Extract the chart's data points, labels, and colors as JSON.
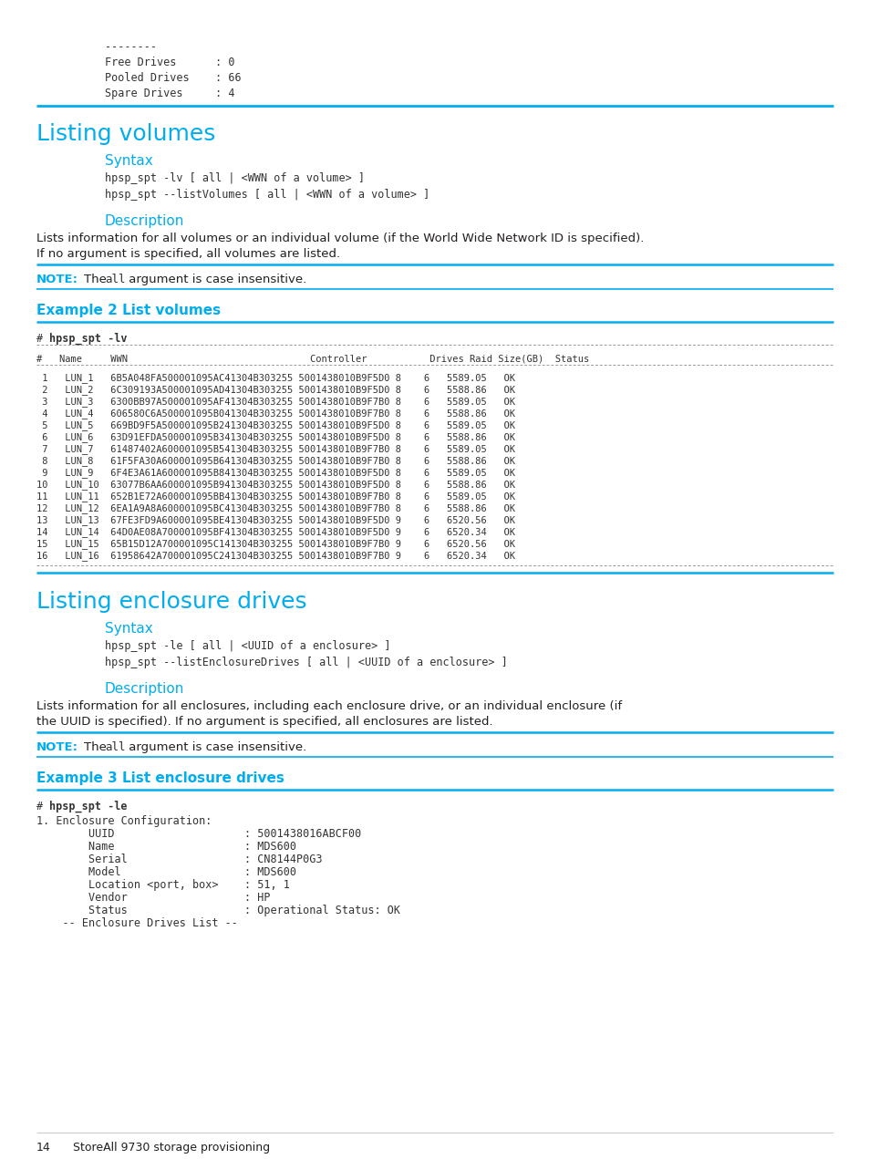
{
  "bg_color": "#ffffff",
  "cyan": "#00ADEF",
  "text_color": "#231f20",
  "mono_color": "#333333",
  "top_code_lines": [
    "--------",
    "Free Drives      : 0",
    "Pooled Drives    : 66",
    "Spare Drives     : 4"
  ],
  "section1_title": "Listing volumes",
  "syntax1_title": "Syntax",
  "syntax1_lines": [
    "hpsp_spt -lv [ all | <WWN of a volume> ]",
    "hpsp_spt --listVolumes [ all | <WWN of a volume> ]"
  ],
  "desc1_title": "Description",
  "desc1_text1": "Lists information for all volumes or an individual volume (if the World Wide Network ID is specified).",
  "desc1_text2": "If no argument is specified, all volumes are listed.",
  "note1_label": "NOTE:",
  "note1_pre": "The ",
  "note1_mono": "all",
  "note1_post": " argument is case insensitive.",
  "example1_title": "Example 2 List volumes",
  "example1_cmd_prefix": "# ",
  "example1_cmd_bold": "hpsp_spt -lv",
  "table1_header": "#   Name      WWN                               Controller           Drives Raid Size(GB)  Status",
  "table1_rows": [
    " 1   LUN_1   6B5A048FA500001095AC41304B303255 5001438010B9F5D0 8    6   5589.05   OK",
    " 2   LUN_2   6C309193A500001095AD41304B303255 5001438010B9F5D0 8    6   5588.86   OK",
    " 3   LUN_3   6300BB97A500001095AF41304B303255 5001438010B9F7B0 8    6   5589.05   OK",
    " 4   LUN_4   606580C6A500001095B041304B303255 5001438010B9F7B0 8    6   5588.86   OK",
    " 5   LUN_5   669BD9F5A500001095B241304B303255 5001438010B9F5D0 8    6   5589.05   OK",
    " 6   LUN_6   63D91EFDA500001095B341304B303255 5001438010B9F5D0 8    6   5588.86   OK",
    " 7   LUN_7   61487402A600001095B541304B303255 5001438010B9F7B0 8    6   5589.05   OK",
    " 8   LUN_8   61F5FA30A600001095B641304B303255 5001438010B9F7B0 8    6   5588.86   OK",
    " 9   LUN_9   6F4E3A61A600001095B841304B303255 5001438010B9F5D0 8    6   5589.05   OK",
    "10   LUN_10  63077B6AA600001095B941304B303255 5001438010B9F5D0 8    6   5588.86   OK",
    "11   LUN_11  652B1E72A600001095BB41304B303255 5001438010B9F7B0 8    6   5589.05   OK",
    "12   LUN_12  6EA1A9A8A600001095BC41304B303255 5001438010B9F7B0 8    6   5588.86   OK",
    "13   LUN_13  67FE3FD9A600001095BE41304B303255 5001438010B9F5D0 9    6   6520.56   OK",
    "14   LUN_14  64D0AE08A700001095BF41304B303255 5001438010B9F5D0 9    6   6520.34   OK",
    "15   LUN_15  65B15D12A700001095C141304B303255 5001438010B9F7B0 9    6   6520.56   OK",
    "16   LUN_16  61958642A700001095C241304B303255 5001438010B9F7B0 9    6   6520.34   OK"
  ],
  "section2_title": "Listing enclosure drives",
  "syntax2_title": "Syntax",
  "syntax2_lines": [
    "hpsp_spt -le [ all | <UUID of a enclosure> ]",
    "hpsp_spt --listEnclosureDrives [ all | <UUID of a enclosure> ]"
  ],
  "desc2_title": "Description",
  "desc2_text1": "Lists information for all enclosures, including each enclosure drive, or an individual enclosure (if",
  "desc2_text2": "the UUID is specified). If no argument is specified, all enclosures are listed.",
  "note2_label": "NOTE:",
  "note2_pre": "The ",
  "note2_mono": "all",
  "note2_post": " argument is case insensitive.",
  "example2_title": "Example 3 List enclosure drives",
  "example2_cmd_prefix": "# ",
  "example2_cmd_bold": "hpsp_spt -le",
  "example2_body": [
    "1. Enclosure Configuration:",
    "        UUID                    : 5001438016ABCF00",
    "        Name                    : MDS600",
    "        Serial                  : CN8144P0G3",
    "        Model                   : MDS600",
    "        Location <port, box>    : 51, 1",
    "        Vendor                  : HP",
    "        Status                  : Operational Status: OK",
    "    -- Enclosure Drives List --"
  ],
  "footer_page": "14",
  "footer_text": "StoreAll 9730 storage provisioning"
}
